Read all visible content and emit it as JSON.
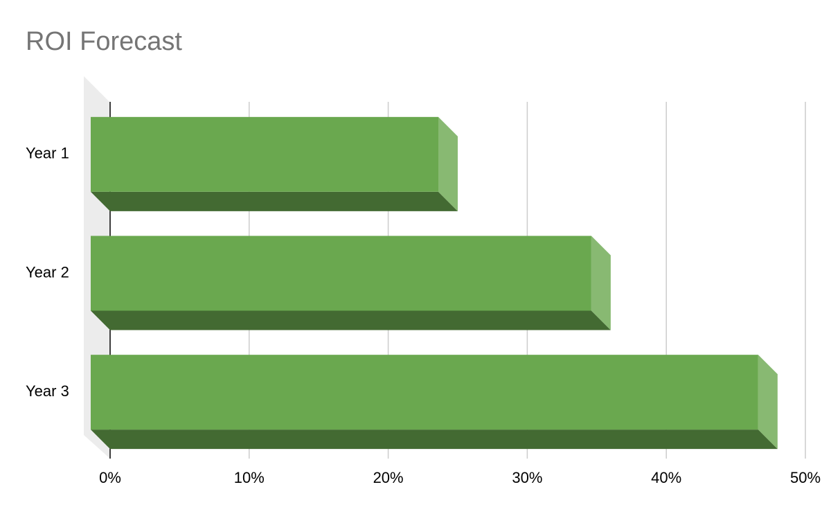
{
  "chart_data": {
    "type": "bar3d",
    "orientation": "horizontal",
    "title": "ROI Forecast",
    "categories": [
      "Year 1",
      "Year 2",
      "Year 3"
    ],
    "values": [
      25,
      36,
      48
    ],
    "color": "#6aa84f",
    "xlim": [
      0,
      50
    ],
    "xticks": [
      {
        "value": 0,
        "label": "0%"
      },
      {
        "value": 10,
        "label": "10%"
      },
      {
        "value": 20,
        "label": "20%"
      },
      {
        "value": 30,
        "label": "30%"
      },
      {
        "value": 40,
        "label": "40%"
      },
      {
        "value": 50,
        "label": "50%"
      }
    ],
    "grid": true
  }
}
